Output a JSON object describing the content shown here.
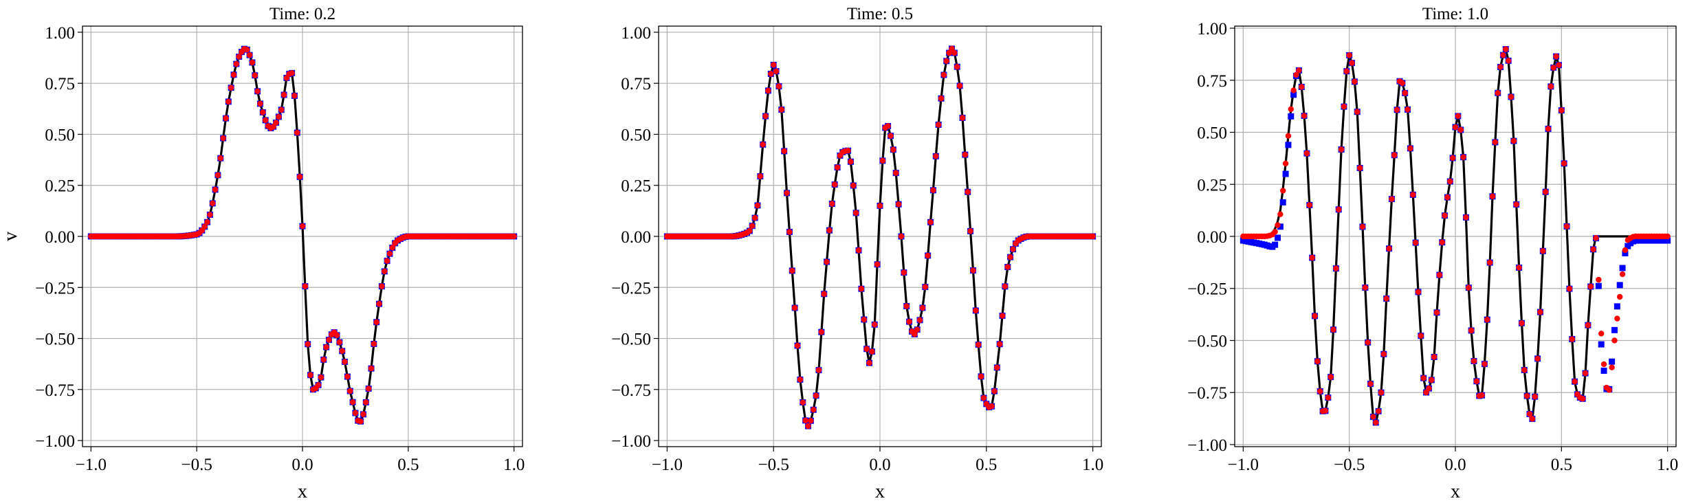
{
  "chart_data": [
    {
      "type": "line",
      "title": "Time: 0.2",
      "xlabel": "x",
      "ylabel": "v",
      "xlim": [
        -1.04,
        1.04
      ],
      "ylim": [
        -1.03,
        1.03
      ],
      "xticks": [
        -1.0,
        -0.5,
        0.0,
        0.5,
        1.0
      ],
      "xtick_labels": [
        "−1.0",
        "−0.5",
        "0.0",
        "0.5",
        "1.0"
      ],
      "yticks": [
        1.0,
        0.75,
        0.5,
        0.25,
        0.0,
        -0.25,
        -0.5,
        -0.75,
        -1.0
      ],
      "ytick_labels": [
        "1.00",
        "0.75",
        "0.50",
        "0.25",
        "0.00",
        "−0.25",
        "−0.50",
        "−0.75",
        "−1.00"
      ],
      "grid": true,
      "legend": "none",
      "series": [
        {
          "style": "line",
          "color": "#000000",
          "x": [
            -1.0,
            -0.6,
            -0.5,
            -0.45,
            -0.4,
            -0.35,
            -0.3,
            -0.27,
            -0.24,
            -0.2,
            -0.15,
            -0.1,
            -0.07,
            -0.05,
            -0.03,
            0.0,
            0.03,
            0.05,
            0.08,
            0.11,
            0.15,
            0.19,
            0.23,
            0.27,
            0.31,
            0.35,
            0.4,
            0.45,
            0.5,
            0.6,
            1.0
          ],
          "y": [
            0.0,
            0.0,
            0.01,
            0.07,
            0.3,
            0.66,
            0.88,
            0.92,
            0.86,
            0.65,
            0.53,
            0.62,
            0.79,
            0.8,
            0.58,
            0.05,
            -0.6,
            -0.75,
            -0.72,
            -0.55,
            -0.47,
            -0.57,
            -0.78,
            -0.91,
            -0.76,
            -0.42,
            -0.12,
            -0.02,
            0.0,
            0.0,
            0.0
          ]
        },
        {
          "style": "markers",
          "color": "#0000ff",
          "marker": "square",
          "x": [
            -1.0,
            -0.6,
            -0.5,
            -0.45,
            -0.4,
            -0.35,
            -0.3,
            -0.27,
            -0.24,
            -0.2,
            -0.15,
            -0.1,
            -0.07,
            -0.05,
            -0.03,
            0.0,
            0.03,
            0.05,
            0.08,
            0.11,
            0.15,
            0.19,
            0.23,
            0.27,
            0.31,
            0.35,
            0.4,
            0.45,
            0.5,
            0.6,
            1.0
          ],
          "y": [
            0.0,
            0.0,
            0.01,
            0.07,
            0.3,
            0.66,
            0.88,
            0.92,
            0.86,
            0.65,
            0.53,
            0.62,
            0.79,
            0.8,
            0.58,
            0.05,
            -0.6,
            -0.75,
            -0.72,
            -0.55,
            -0.47,
            -0.57,
            -0.78,
            -0.91,
            -0.76,
            -0.42,
            -0.12,
            -0.02,
            0.0,
            0.0,
            0.0
          ]
        },
        {
          "style": "markers",
          "color": "#ff0000",
          "marker": "circle",
          "x": [
            -1.0,
            -0.6,
            -0.5,
            -0.45,
            -0.4,
            -0.35,
            -0.3,
            -0.27,
            -0.24,
            -0.2,
            -0.15,
            -0.1,
            -0.07,
            -0.05,
            -0.03,
            0.0,
            0.03,
            0.05,
            0.08,
            0.11,
            0.15,
            0.19,
            0.23,
            0.27,
            0.31,
            0.35,
            0.4,
            0.45,
            0.5,
            0.6,
            1.0
          ],
          "y": [
            0.0,
            0.0,
            0.01,
            0.07,
            0.3,
            0.66,
            0.88,
            0.92,
            0.86,
            0.65,
            0.53,
            0.62,
            0.79,
            0.8,
            0.58,
            0.05,
            -0.6,
            -0.75,
            -0.72,
            -0.55,
            -0.47,
            -0.57,
            -0.78,
            -0.91,
            -0.76,
            -0.42,
            -0.12,
            -0.02,
            0.0,
            0.0,
            0.0
          ]
        }
      ]
    },
    {
      "type": "line",
      "title": "Time: 0.5",
      "xlabel": "x",
      "ylabel": "",
      "xlim": [
        -1.04,
        1.04
      ],
      "ylim": [
        -1.03,
        1.03
      ],
      "xticks": [
        -1.0,
        -0.5,
        0.0,
        0.5,
        1.0
      ],
      "xtick_labels": [
        "−1.0",
        "−0.5",
        "0.0",
        "0.5",
        "1.0"
      ],
      "yticks": [
        1.0,
        0.75,
        0.5,
        0.25,
        0.0,
        -0.25,
        -0.5,
        -0.75,
        -1.0
      ],
      "ytick_labels": [
        "1.00",
        "0.75",
        "0.50",
        "0.25",
        "0.00",
        "−0.25",
        "−0.50",
        "−0.75",
        "−1.00"
      ],
      "grid": true,
      "legend": "none",
      "series": [
        {
          "style": "line",
          "color": "#000000",
          "x": [
            -1.0,
            -0.7,
            -0.62,
            -0.58,
            -0.55,
            -0.52,
            -0.5,
            -0.47,
            -0.44,
            -0.4,
            -0.37,
            -0.34,
            -0.3,
            -0.26,
            -0.22,
            -0.18,
            -0.15,
            -0.12,
            -0.08,
            -0.05,
            -0.03,
            0.0,
            0.03,
            0.06,
            0.1,
            0.13,
            0.16,
            0.2,
            0.24,
            0.28,
            0.31,
            0.34,
            0.37,
            0.4,
            0.43,
            0.46,
            0.49,
            0.52,
            0.56,
            0.6,
            0.65,
            0.7,
            1.0
          ],
          "y": [
            0.0,
            0.0,
            0.02,
            0.12,
            0.45,
            0.75,
            0.84,
            0.7,
            0.25,
            -0.35,
            -0.75,
            -0.93,
            -0.78,
            -0.25,
            0.2,
            0.41,
            0.42,
            0.2,
            -0.35,
            -0.62,
            -0.5,
            0.15,
            0.55,
            0.44,
            0.0,
            -0.38,
            -0.48,
            -0.35,
            0.1,
            0.6,
            0.85,
            0.92,
            0.78,
            0.4,
            -0.05,
            -0.5,
            -0.8,
            -0.84,
            -0.55,
            -0.15,
            -0.02,
            0.0,
            0.0
          ]
        },
        {
          "style": "markers",
          "color": "#0000ff",
          "marker": "square",
          "x": [
            -1.0,
            -0.7,
            -0.62,
            -0.58,
            -0.55,
            -0.52,
            -0.5,
            -0.47,
            -0.44,
            -0.4,
            -0.37,
            -0.34,
            -0.3,
            -0.26,
            -0.22,
            -0.18,
            -0.15,
            -0.12,
            -0.08,
            -0.05,
            -0.03,
            0.0,
            0.03,
            0.06,
            0.1,
            0.13,
            0.16,
            0.2,
            0.24,
            0.28,
            0.31,
            0.34,
            0.37,
            0.4,
            0.43,
            0.46,
            0.49,
            0.52,
            0.56,
            0.6,
            0.65,
            0.7,
            1.0
          ],
          "y": [
            0.0,
            0.0,
            0.02,
            0.12,
            0.45,
            0.75,
            0.84,
            0.7,
            0.25,
            -0.35,
            -0.75,
            -0.93,
            -0.78,
            -0.25,
            0.2,
            0.41,
            0.42,
            0.2,
            -0.35,
            -0.62,
            -0.5,
            0.15,
            0.55,
            0.44,
            0.0,
            -0.38,
            -0.48,
            -0.35,
            0.1,
            0.6,
            0.85,
            0.92,
            0.78,
            0.4,
            -0.05,
            -0.5,
            -0.8,
            -0.84,
            -0.55,
            -0.15,
            -0.02,
            0.0,
            0.0
          ]
        },
        {
          "style": "markers",
          "color": "#ff0000",
          "marker": "circle",
          "x": [
            -1.0,
            -0.7,
            -0.62,
            -0.58,
            -0.55,
            -0.52,
            -0.5,
            -0.47,
            -0.44,
            -0.4,
            -0.37,
            -0.34,
            -0.3,
            -0.26,
            -0.22,
            -0.18,
            -0.15,
            -0.12,
            -0.08,
            -0.05,
            -0.03,
            0.0,
            0.03,
            0.06,
            0.1,
            0.13,
            0.16,
            0.2,
            0.24,
            0.28,
            0.31,
            0.34,
            0.37,
            0.4,
            0.43,
            0.46,
            0.49,
            0.52,
            0.56,
            0.6,
            0.65,
            0.7,
            1.0
          ],
          "y": [
            0.0,
            0.0,
            0.02,
            0.12,
            0.45,
            0.75,
            0.84,
            0.7,
            0.25,
            -0.35,
            -0.75,
            -0.93,
            -0.78,
            -0.25,
            0.2,
            0.41,
            0.42,
            0.2,
            -0.35,
            -0.62,
            -0.5,
            0.15,
            0.55,
            0.44,
            0.0,
            -0.38,
            -0.48,
            -0.35,
            0.1,
            0.6,
            0.85,
            0.92,
            0.78,
            0.4,
            -0.05,
            -0.5,
            -0.8,
            -0.84,
            -0.55,
            -0.15,
            -0.02,
            0.0,
            0.0
          ]
        }
      ]
    },
    {
      "type": "line",
      "title": "Time: 1.0",
      "xlabel": "x",
      "ylabel": "",
      "xlim": [
        -1.04,
        1.04
      ],
      "ylim": [
        -1.01,
        1.01
      ],
      "xticks": [
        -1.0,
        -0.5,
        0.0,
        0.5,
        1.0
      ],
      "xtick_labels": [
        "−1.0",
        "−0.5",
        "0.0",
        "0.5",
        "1.0"
      ],
      "yticks": [
        1.0,
        0.75,
        0.5,
        0.25,
        0.0,
        -0.25,
        -0.5,
        -0.75,
        -1.0
      ],
      "ytick_labels": [
        "1.00",
        "0.75",
        "0.50",
        "0.25",
        "0.00",
        "−0.25",
        "−0.50",
        "−0.75",
        "−1.00"
      ],
      "grid": true,
      "legend": "none",
      "series": [
        {
          "style": "line",
          "color": "#000000",
          "x": [
            -1.0,
            -0.9,
            -0.86,
            -0.83,
            -0.8,
            -0.77,
            -0.74,
            -0.71,
            -0.68,
            -0.65,
            -0.62,
            -0.59,
            -0.56,
            -0.53,
            -0.5,
            -0.47,
            -0.44,
            -0.41,
            -0.38,
            -0.35,
            -0.32,
            -0.29,
            -0.26,
            -0.23,
            -0.2,
            -0.17,
            -0.14,
            -0.11,
            -0.08,
            -0.05,
            -0.02,
            0.01,
            0.04,
            0.06,
            0.09,
            0.12,
            0.15,
            0.18,
            0.21,
            0.24,
            0.27,
            0.3,
            0.33,
            0.36,
            0.39,
            0.42,
            0.45,
            0.48,
            0.51,
            0.54,
            0.57,
            0.6,
            0.63,
            0.66,
            0.69,
            0.72,
            0.75,
            0.78,
            0.81,
            0.85,
            0.9,
            1.0
          ],
          "y": [
            0.0,
            0.0,
            0.02,
            0.1,
            0.35,
            0.65,
            0.8,
            0.55,
            0.0,
            -0.6,
            -0.85,
            -0.7,
            -0.1,
            0.55,
            0.87,
            0.7,
            0.1,
            -0.55,
            -0.9,
            -0.75,
            -0.2,
            0.35,
            0.75,
            0.65,
            0.2,
            -0.35,
            -0.75,
            -0.68,
            -0.25,
            0.1,
            0.3,
            0.58,
            0.35,
            -0.2,
            -0.62,
            -0.78,
            -0.4,
            0.3,
            0.8,
            0.9,
            0.55,
            -0.15,
            -0.7,
            -0.88,
            -0.55,
            0.1,
            0.72,
            0.87,
            0.4,
            -0.3,
            -0.75,
            -0.78,
            -0.35,
            0.0,
            0.0,
            0.0,
            0.0,
            0.0,
            0.0,
            0.0,
            0.0,
            0.0
          ]
        },
        {
          "style": "markers",
          "color": "#0000ff",
          "marker": "square",
          "x": [
            -1.0,
            -0.9,
            -0.86,
            -0.83,
            -0.8,
            -0.77,
            -0.74,
            -0.71,
            -0.68,
            -0.65,
            -0.62,
            -0.59,
            -0.56,
            -0.53,
            -0.5,
            -0.47,
            -0.44,
            -0.41,
            -0.38,
            -0.35,
            -0.32,
            -0.29,
            -0.26,
            -0.23,
            -0.2,
            -0.17,
            -0.14,
            -0.11,
            -0.08,
            -0.05,
            -0.02,
            0.01,
            0.04,
            0.06,
            0.09,
            0.12,
            0.15,
            0.18,
            0.21,
            0.24,
            0.27,
            0.3,
            0.33,
            0.36,
            0.39,
            0.42,
            0.45,
            0.48,
            0.51,
            0.54,
            0.57,
            0.6,
            0.63,
            0.66,
            0.69,
            0.72,
            0.75,
            0.78,
            0.81,
            0.85,
            0.9,
            1.0
          ],
          "y": [
            -0.02,
            -0.04,
            -0.05,
            0.02,
            0.3,
            0.62,
            0.8,
            0.55,
            0.0,
            -0.6,
            -0.85,
            -0.7,
            -0.1,
            0.55,
            0.87,
            0.7,
            0.1,
            -0.55,
            -0.9,
            -0.75,
            -0.2,
            0.35,
            0.75,
            0.65,
            0.2,
            -0.35,
            -0.75,
            -0.68,
            -0.25,
            0.1,
            0.3,
            0.58,
            0.35,
            -0.2,
            -0.62,
            -0.78,
            -0.4,
            0.3,
            0.8,
            0.9,
            0.55,
            -0.15,
            -0.7,
            -0.88,
            -0.55,
            0.1,
            0.72,
            0.87,
            0.4,
            -0.3,
            -0.75,
            -0.78,
            -0.35,
            0.0,
            -0.55,
            -0.75,
            -0.45,
            -0.2,
            -0.05,
            -0.02,
            -0.02,
            -0.02
          ]
        },
        {
          "style": "markers",
          "color": "#ff0000",
          "marker": "circle",
          "x": [
            -1.0,
            -0.9,
            -0.86,
            -0.83,
            -0.8,
            -0.77,
            -0.74,
            -0.71,
            -0.68,
            -0.65,
            -0.62,
            -0.59,
            -0.56,
            -0.53,
            -0.5,
            -0.47,
            -0.44,
            -0.41,
            -0.38,
            -0.35,
            -0.32,
            -0.29,
            -0.26,
            -0.23,
            -0.2,
            -0.17,
            -0.14,
            -0.11,
            -0.08,
            -0.05,
            -0.02,
            0.01,
            0.04,
            0.06,
            0.09,
            0.12,
            0.15,
            0.18,
            0.21,
            0.24,
            0.27,
            0.3,
            0.33,
            0.36,
            0.39,
            0.42,
            0.45,
            0.48,
            0.51,
            0.54,
            0.57,
            0.6,
            0.63,
            0.66,
            0.69,
            0.72,
            0.75,
            0.78,
            0.81,
            0.85,
            0.9,
            1.0
          ],
          "y": [
            0.0,
            0.0,
            0.01,
            0.08,
            0.35,
            0.65,
            0.8,
            0.55,
            0.0,
            -0.6,
            -0.85,
            -0.7,
            -0.1,
            0.55,
            0.87,
            0.7,
            0.1,
            -0.55,
            -0.9,
            -0.75,
            -0.2,
            0.35,
            0.75,
            0.65,
            0.2,
            -0.35,
            -0.75,
            -0.68,
            -0.25,
            0.1,
            0.3,
            0.58,
            0.35,
            -0.2,
            -0.62,
            -0.78,
            -0.4,
            0.3,
            0.8,
            0.9,
            0.55,
            -0.15,
            -0.7,
            -0.88,
            -0.55,
            0.1,
            0.72,
            0.87,
            0.4,
            -0.3,
            -0.75,
            -0.78,
            -0.35,
            0.0,
            -0.5,
            -0.75,
            -0.5,
            -0.25,
            -0.02,
            0.0,
            0.0,
            0.0
          ]
        }
      ]
    }
  ]
}
